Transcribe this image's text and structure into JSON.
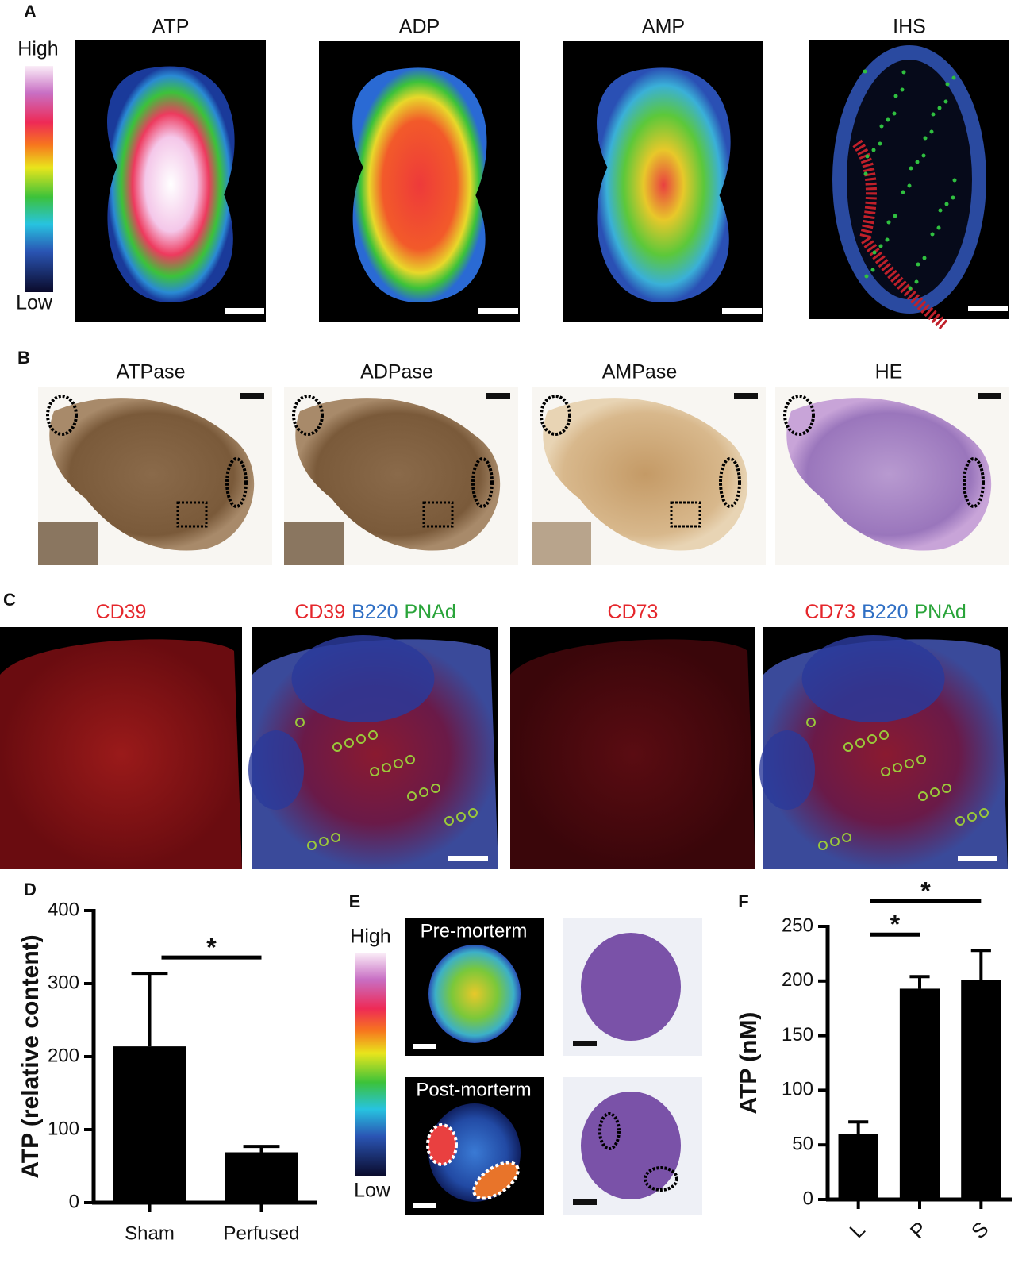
{
  "panels": {
    "A": {
      "label": "A",
      "titles": [
        "ATP",
        "ADP",
        "AMP",
        "IHS"
      ],
      "colorbar": [
        "High",
        "Low"
      ]
    },
    "B": {
      "label": "B",
      "titles": [
        "ATPase",
        "ADPase",
        "AMPase",
        "HE"
      ]
    },
    "C": {
      "label": "C",
      "titles": [
        [
          {
            "text": "CD39",
            "color": "#e5262b"
          }
        ],
        [
          {
            "text": "CD39",
            "color": "#e5262b"
          },
          {
            "text": "B220",
            "color": "#2f6fc4"
          },
          {
            "text": "PNAd",
            "color": "#2aa43a"
          }
        ],
        [
          {
            "text": "CD73",
            "color": "#e5262b"
          }
        ],
        [
          {
            "text": "CD73",
            "color": "#e5262b"
          },
          {
            "text": "B220",
            "color": "#2f6fc4"
          },
          {
            "text": "PNAd",
            "color": "#2aa43a"
          }
        ]
      ]
    },
    "E": {
      "label": "E",
      "colorbar": [
        "High",
        "Low"
      ],
      "image_labels": [
        "Pre-morterm",
        "Post-morterm"
      ]
    }
  },
  "chart_data": [
    {
      "type": "bar",
      "panel_label": "D",
      "ylabel": "ATP (relative content)",
      "categories": [
        "Sham",
        "Perfused"
      ],
      "values": [
        214,
        69
      ],
      "errors": [
        100,
        8
      ],
      "color": "#000000",
      "ylim": [
        0,
        400
      ],
      "yticks": [
        0,
        100,
        200,
        300,
        400
      ],
      "annotations": [
        "*"
      ]
    },
    {
      "type": "bar",
      "panel_label": "F",
      "ylabel": "ATP (nM)",
      "categories": [
        "L",
        "P",
        "S"
      ],
      "values": [
        60,
        193,
        201
      ],
      "errors": [
        11,
        11,
        27
      ],
      "color": "#000000",
      "ylim": [
        0,
        250
      ],
      "yticks": [
        0,
        50,
        100,
        150,
        200,
        250
      ],
      "annotations": [
        "*",
        "*"
      ]
    }
  ]
}
